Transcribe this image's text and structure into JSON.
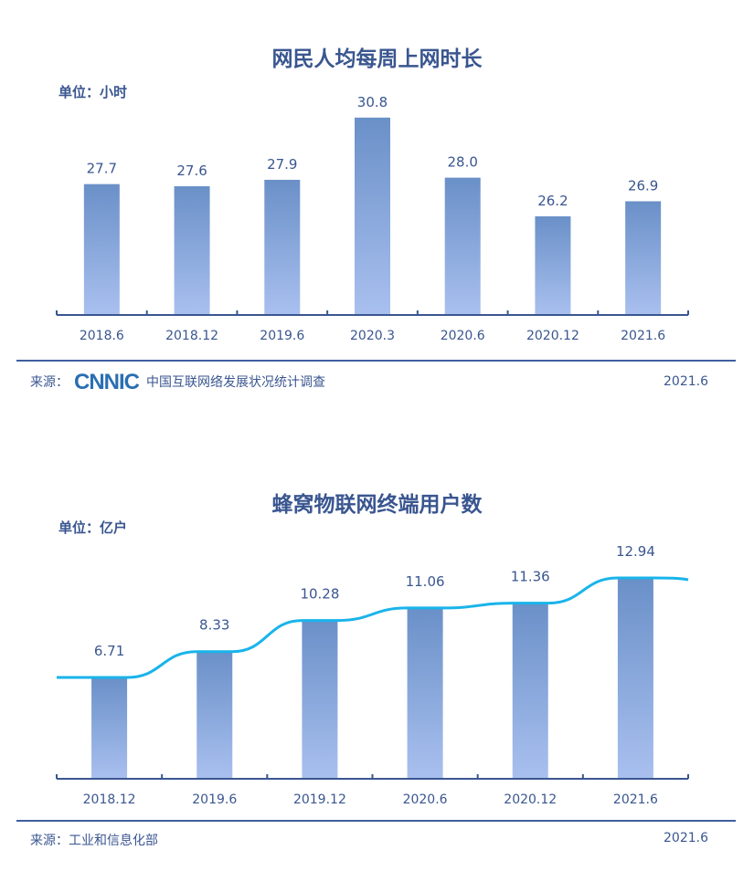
{
  "chart_data": [
    {
      "type": "bar",
      "title": "网民人均每周上网时长",
      "unit": "单位：小时",
      "categories": [
        "2018.6",
        "2018.12",
        "2019.6",
        "2020.3",
        "2020.6",
        "2020.12",
        "2021.6"
      ],
      "values": [
        27.7,
        27.6,
        27.9,
        30.8,
        28.0,
        26.2,
        26.9
      ],
      "value_labels": [
        "27.7",
        "27.6",
        "27.9",
        "30.8",
        "28.0",
        "26.2",
        "26.9"
      ],
      "source_label": "来源：",
      "source_logo": "CNNIC",
      "source_text": "中国互联网络发展状况统计调查",
      "date": "2021.6"
    },
    {
      "type": "bar",
      "title": "蜂窝物联网终端用户数",
      "unit": "单位：亿户",
      "categories": [
        "2018.12",
        "2019.6",
        "2019.12",
        "2020.6",
        "2020.12",
        "2021.6"
      ],
      "values": [
        6.71,
        8.33,
        10.28,
        11.06,
        11.36,
        12.94
      ],
      "value_labels": [
        "6.71",
        "8.33",
        "10.28",
        "11.06",
        "11.36",
        "12.94"
      ],
      "trend_line": true,
      "source_label": "来源：",
      "source_text": "工业和信息化部",
      "date": "2021.6"
    }
  ],
  "colors": {
    "bar_top": "#6a90c8",
    "bar_bottom": "#a9c0ef",
    "axis": "#3a5690",
    "line": "#19b4ea"
  }
}
